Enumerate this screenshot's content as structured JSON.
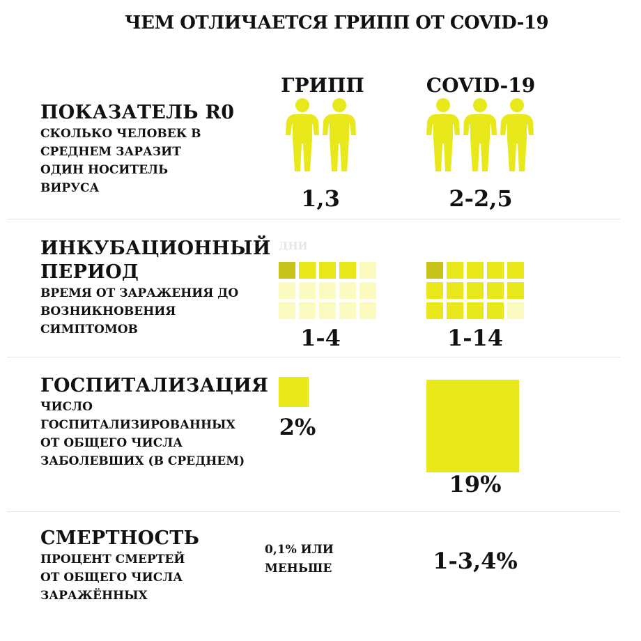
{
  "title": "ЧЕМ ОТЛИЧАЕТСЯ ГРИПП ОТ COVID-19",
  "columns": {
    "flu": "ГРИПП",
    "covid": "COVID-19"
  },
  "colors": {
    "accent": "#e8e81a",
    "dark_cell": "#c8c31a",
    "pale_cell": "#fbfbbf",
    "divider": "#e4e4e4"
  },
  "r0": {
    "title": "ПОКАЗАТЕЛЬ R0",
    "subtitle": [
      "СКОЛЬКО ЧЕЛОВЕК В",
      "СРЕДНЕМ ЗАРАЗИТ",
      "ОДИН НОСИТЕЛЬ",
      "ВИРУСА"
    ],
    "flu_value": "1,3",
    "covid_value": "2-2,5",
    "icon": "person-icon",
    "flu_people": 2,
    "covid_people": 3
  },
  "incubation": {
    "title": [
      "ИНКУБАЦИОННЫЙ",
      "ПЕРИОД"
    ],
    "subtitle": [
      "ВРЕМЯ ОТ ЗАРАЖЕНИЯ ДО",
      "ВОЗНИКНОВЕНИЯ",
      "СИМПТОМОВ"
    ],
    "unit": "ДНИ",
    "flu_value": "1-4",
    "covid_value": "1-14",
    "total_days": 15,
    "flu_days_max": 4,
    "covid_days_max": 14
  },
  "hospitalization": {
    "title": "ГОСПИТАЛИЗАЦИЯ",
    "subtitle": [
      "ЧИСЛО",
      "ГОСПИТАЛИЗИРОВАННЫХ",
      "ОТ ОБЩЕГО ЧИСЛА",
      "ЗАБОЛЕВШИХ (В СРЕДНЕМ)"
    ],
    "flu_value": "2%",
    "covid_value": "19%",
    "flu_percent": 2,
    "covid_percent": 19
  },
  "mortality": {
    "title": "СМЕРТНОСТЬ",
    "subtitle": [
      "ПРОЦЕНТ СМЕРТЕЙ",
      "ОТ ОБЩЕГО ЧИСЛА",
      "ЗАРАЖЁННЫХ"
    ],
    "flu_value": [
      "0,1% ИЛИ",
      "МЕНЬШЕ"
    ],
    "covid_value": "1-3,4%"
  }
}
